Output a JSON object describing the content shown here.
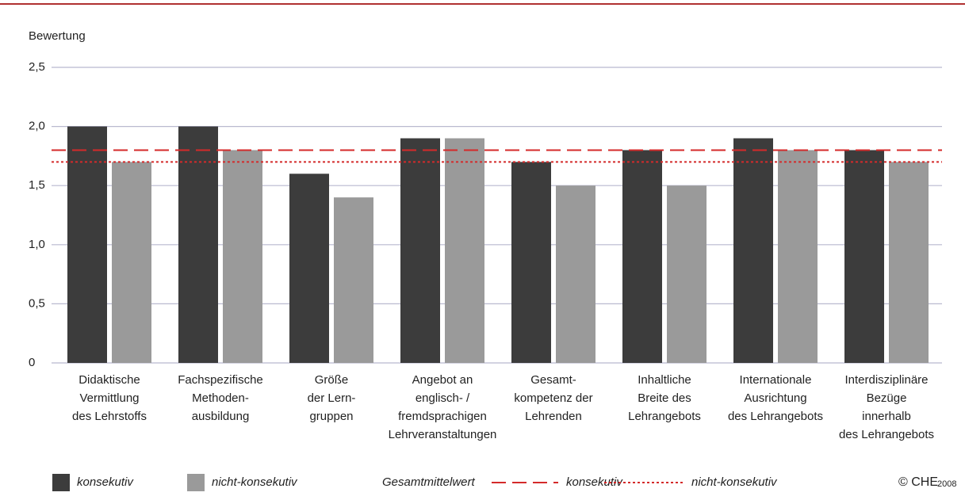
{
  "chart_data": {
    "type": "bar",
    "y_label": "Bewertung",
    "categories": [
      [
        "Didaktische",
        "Vermittlung",
        "des Lehrstoffs"
      ],
      [
        "Fachspezifische",
        "Methoden-",
        "ausbildung"
      ],
      [
        "Größe",
        "der Lern-",
        "gruppen"
      ],
      [
        "Angebot an",
        "englisch- /",
        "fremdsprachigen",
        "Lehrveranstaltungen"
      ],
      [
        "Gesamt-",
        "kompetenz der",
        "Lehrenden"
      ],
      [
        "Inhaltliche",
        "Breite des",
        "Lehrangebots"
      ],
      [
        "Internationale",
        "Ausrichtung",
        "des Lehrangebots"
      ],
      [
        "Interdisziplinäre",
        "Bezüge",
        "innerhalb",
        "des Lehrangebots"
      ]
    ],
    "series": [
      {
        "name": "konsekutiv",
        "color": "#3c3c3c",
        "values": [
          2.0,
          2.0,
          1.6,
          1.9,
          1.7,
          1.8,
          1.9,
          1.8
        ]
      },
      {
        "name": "nicht-konsekutiv",
        "color": "#9a9a9a",
        "values": [
          1.7,
          1.8,
          1.4,
          1.9,
          1.5,
          1.5,
          1.8,
          1.7
        ]
      }
    ],
    "reference_title": "Gesamtmittelwert",
    "reference_lines": [
      {
        "name": "konsekutiv",
        "value": 1.8,
        "color": "#d42a2a",
        "style": "dashed"
      },
      {
        "name": "nicht-konsekutiv",
        "value": 1.7,
        "color": "#d42a2a",
        "style": "dotted"
      }
    ],
    "ylim": [
      0,
      2.5
    ],
    "yticks": [
      0,
      {
        "value": 0.5,
        "label": "0,5"
      },
      {
        "value": 1.0,
        "label": "1,0"
      },
      {
        "value": 1.5,
        "label": "1,5"
      },
      {
        "value": 2.0,
        "label": "2,0"
      },
      {
        "value": 2.5,
        "label": "2,5"
      }
    ],
    "grid": true,
    "credit_logo": "© CHE",
    "credit_year": "2008"
  }
}
